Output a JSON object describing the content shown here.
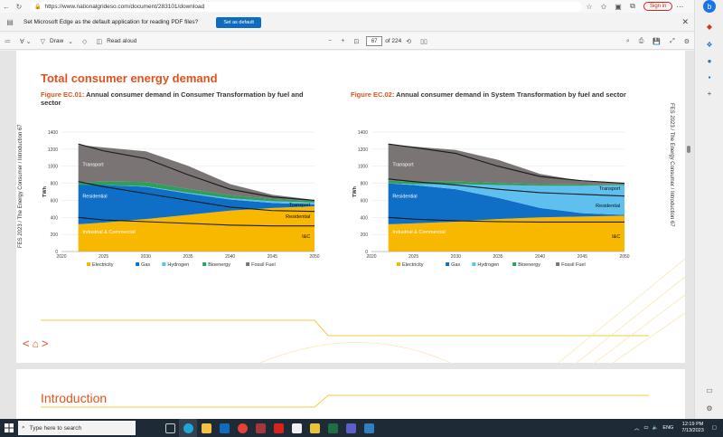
{
  "browser": {
    "url": "https://www.nationalgrideso.com/document/283101/download",
    "sign_in_label": "Sign in"
  },
  "infobar": {
    "message": "Set Microsoft Edge as the default application for reading PDF files?",
    "button_label": "Set as default"
  },
  "pdf_toolbar": {
    "draw_label": "Draw",
    "read_aloud_label": "Read aloud",
    "page_current": "67",
    "page_total": "of 224"
  },
  "page": {
    "section_title": "Total consumer energy demand",
    "left_side_text": "FES 2023  /  The Energy Consumer  /  Introduction  67",
    "right_side_text": "FES 2023  /  The Energy Consumer  /  Introduction  67",
    "nav_arrows": [
      "<",
      ">"
    ],
    "next_page_title": "Introduction"
  },
  "figures": [
    {
      "label": "Figure EC.01:",
      "caption": "Annual consumer demand in Consumer Transformation by fuel and sector"
    },
    {
      "label": "Figure EC.02:",
      "caption": "Annual consumer demand in System Transformation by fuel and sector"
    }
  ],
  "chart_data": [
    {
      "type": "area",
      "title": "Figure EC.01: Annual consumer demand in Consumer Transformation by fuel and sector",
      "ylabel": "TWh",
      "xlabel": "",
      "xlim": [
        2020,
        2050
      ],
      "ylim": [
        0,
        1400
      ],
      "x_ticks": [
        "2020",
        "2025",
        "2030",
        "2035",
        "2040",
        "2045",
        "2050"
      ],
      "y_ticks": [
        "0",
        "200",
        "400",
        "600",
        "800",
        "1000",
        "1200",
        "1400"
      ],
      "grid": true,
      "legend_position": "bottom",
      "x": [
        2022,
        2025,
        2030,
        2035,
        2040,
        2045,
        2050
      ],
      "series": [
        {
          "name": "Electricity",
          "color": "#f9b800",
          "values": [
            320,
            340,
            380,
            430,
            480,
            510,
            530
          ]
        },
        {
          "name": "Gas",
          "color": "#0f6fc6",
          "values": [
            460,
            440,
            380,
            250,
            130,
            60,
            20
          ]
        },
        {
          "name": "Hydrogen",
          "color": "#5fc0f0",
          "values": [
            0,
            0,
            5,
            10,
            15,
            20,
            25
          ]
        },
        {
          "name": "Bioenergy",
          "color": "#2e9e5b",
          "values": [
            30,
            40,
            50,
            45,
            35,
            25,
            20
          ]
        },
        {
          "name": "Fossil Fuel",
          "color": "#7a7474",
          "values": [
            440,
            400,
            360,
            270,
            130,
            50,
            10
          ]
        }
      ],
      "sector_labels": [
        {
          "text": "Transport",
          "x": 2022.5,
          "y": 1000
        },
        {
          "text": "Residential",
          "x": 2022.5,
          "y": 630
        },
        {
          "text": "Industrial & Commercial",
          "x": 2022.5,
          "y": 210
        },
        {
          "text": "Transport",
          "x": 2049.5,
          "y": 530
        },
        {
          "text": "Residential",
          "x": 2049.5,
          "y": 390
        },
        {
          "text": "I&C",
          "x": 2049.5,
          "y": 160
        }
      ],
      "boundary_lines": [
        [
          1260,
          1180,
          1090,
          900,
          730,
          640,
          600
        ],
        [
          820,
          760,
          680,
          600,
          520,
          480,
          470
        ],
        [
          400,
          370,
          350,
          330,
          310,
          300,
          300
        ]
      ]
    },
    {
      "type": "area",
      "title": "Figure EC.02: Annual consumer demand in System Transformation by fuel and sector",
      "ylabel": "TWh",
      "xlabel": "",
      "xlim": [
        2020,
        2050
      ],
      "ylim": [
        0,
        1400
      ],
      "x_ticks": [
        "2020",
        "2025",
        "2030",
        "2035",
        "2040",
        "2045",
        "2050"
      ],
      "y_ticks": [
        "0",
        "200",
        "400",
        "600",
        "800",
        "1000",
        "1200",
        "1400"
      ],
      "grid": true,
      "legend_position": "bottom",
      "x": [
        2022,
        2025,
        2030,
        2035,
        2040,
        2045,
        2050
      ],
      "series": [
        {
          "name": "Electricity",
          "color": "#f9b800",
          "values": [
            320,
            330,
            350,
            380,
            400,
            410,
            420
          ]
        },
        {
          "name": "Gas",
          "color": "#0f6fc6",
          "values": [
            480,
            450,
            380,
            250,
            110,
            40,
            10
          ]
        },
        {
          "name": "Hydrogen",
          "color": "#5fc0f0",
          "values": [
            0,
            10,
            60,
            150,
            260,
            320,
            350
          ]
        },
        {
          "name": "Bioenergy",
          "color": "#2e9e5b",
          "values": [
            30,
            30,
            30,
            25,
            20,
            15,
            10
          ]
        },
        {
          "name": "Fossil Fuel",
          "color": "#7a7474",
          "values": [
            430,
            410,
            370,
            270,
            120,
            40,
            10
          ]
        }
      ],
      "sector_labels": [
        {
          "text": "Transport",
          "x": 2022.5,
          "y": 1000
        },
        {
          "text": "Residential",
          "x": 2022.5,
          "y": 630
        },
        {
          "text": "Industrial & Commercial",
          "x": 2022.5,
          "y": 210
        },
        {
          "text": "Transport",
          "x": 2049.5,
          "y": 720
        },
        {
          "text": "Residential",
          "x": 2049.5,
          "y": 520
        },
        {
          "text": "I&C",
          "x": 2049.5,
          "y": 160
        }
      ],
      "boundary_lines": [
        [
          1260,
          1220,
          1150,
          1000,
          880,
          830,
          800
        ],
        [
          850,
          820,
          780,
          730,
          690,
          670,
          650
        ],
        [
          400,
          380,
          360,
          350,
          345,
          345,
          345
        ]
      ]
    }
  ],
  "taskbar": {
    "search_placeholder": "Type here to search",
    "time": "12:19 PM",
    "date": "7/13/2023",
    "language": "ENG"
  },
  "colors": {
    "accent_orange": "#e2511d",
    "edge_blue": "#0f6cbd",
    "taskbar": "#1f2a37"
  }
}
